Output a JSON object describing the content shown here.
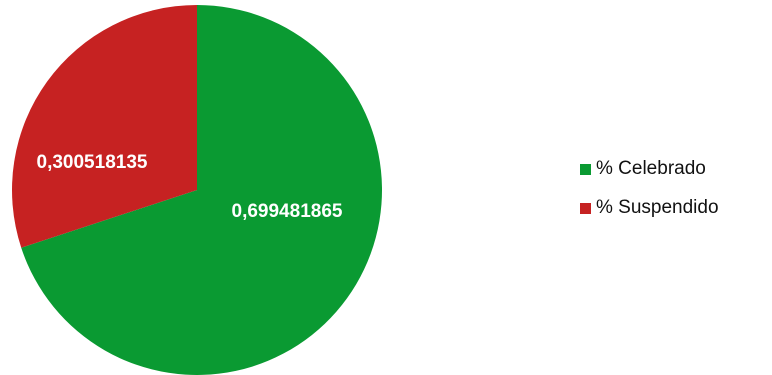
{
  "chart_data": {
    "type": "pie",
    "slices": [
      {
        "label": "% Celebrado",
        "value": 0.699481865,
        "display": "0,699481865",
        "color": "#0a9a32"
      },
      {
        "label": "% Suspendido",
        "value": 0.300518135,
        "display": "0,300518135",
        "color": "#c62222"
      }
    ],
    "legend_position": "right"
  }
}
